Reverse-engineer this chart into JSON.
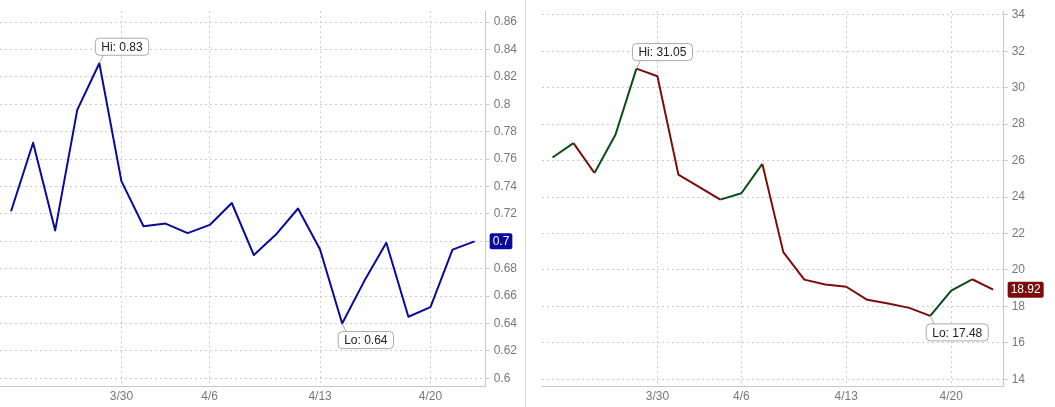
{
  "chart_data": [
    {
      "type": "line",
      "categories": [
        null,
        null,
        null,
        null,
        null,
        "3/30",
        null,
        null,
        null,
        "4/6",
        null,
        null,
        null,
        null,
        "4/13",
        null,
        null,
        null,
        null,
        "4/20",
        null,
        null
      ],
      "series": [
        {
          "color": "#0a0a9e",
          "values": [
            0.722,
            0.772,
            0.708,
            0.796,
            0.83,
            0.744,
            0.711,
            0.713,
            0.706,
            0.712,
            0.728,
            0.69,
            0.705,
            0.724,
            0.694,
            0.64,
            0.671,
            0.699,
            0.645,
            0.652,
            0.694,
            0.7
          ],
          "value_labels": [
            null,
            null,
            null,
            null,
            "Hi: 0.83",
            null,
            null,
            null,
            null,
            null,
            null,
            null,
            null,
            null,
            null,
            "Lo: 0.64",
            null,
            null,
            null,
            null,
            null,
            "0.7"
          ]
        }
      ],
      "ylim": [
        0.594,
        0.868
      ],
      "yticks": [
        0.6,
        0.62,
        0.64,
        0.66,
        0.68,
        {
          "value": 0.7,
          "label": null
        },
        0.72,
        0.74,
        0.76,
        0.78,
        0.8,
        0.82,
        0.84,
        0.86
      ],
      "grid": true,
      "legend": false,
      "marker": "none"
    },
    {
      "type": "line",
      "categories": [
        null,
        null,
        null,
        null,
        null,
        "3/30",
        null,
        null,
        null,
        "4/6",
        null,
        null,
        null,
        null,
        "4/13",
        null,
        null,
        null,
        null,
        "4/20",
        null,
        null
      ],
      "series": [
        {
          "color": "#0b4d12",
          "values": [
            26.17,
            26.96,
            25.32,
            27.42,
            31.05,
            null,
            null,
            null,
            23.86,
            24.21,
            25.82,
            null,
            null,
            null,
            null,
            null,
            null,
            null,
            17.48,
            18.87,
            19.49,
            null
          ],
          "value_labels": [
            null,
            null,
            null,
            null,
            "Hi: 31.05",
            null,
            null,
            null,
            null,
            null,
            null,
            null,
            null,
            null,
            null,
            null,
            null,
            null,
            "Lo: 17.48",
            null,
            null,
            null
          ]
        },
        {
          "color": "#7a0c0c",
          "values": [
            null,
            26.96,
            25.32,
            null,
            31.05,
            30.63,
            25.23,
            24.55,
            23.86,
            null,
            25.82,
            20.98,
            19.47,
            19.2,
            19.08,
            18.36,
            18.16,
            17.92,
            17.48,
            null,
            19.49,
            18.92
          ],
          "value_labels": [
            null,
            null,
            null,
            null,
            null,
            null,
            null,
            null,
            null,
            null,
            null,
            null,
            null,
            null,
            null,
            null,
            null,
            null,
            null,
            null,
            null,
            "18.92"
          ]
        }
      ],
      "ylim": [
        13.6,
        34.2
      ],
      "yticks": [
        14,
        16,
        18,
        20,
        22,
        24,
        26,
        28,
        30,
        32,
        34
      ],
      "grid": true,
      "legend": false,
      "marker": "none"
    }
  ]
}
